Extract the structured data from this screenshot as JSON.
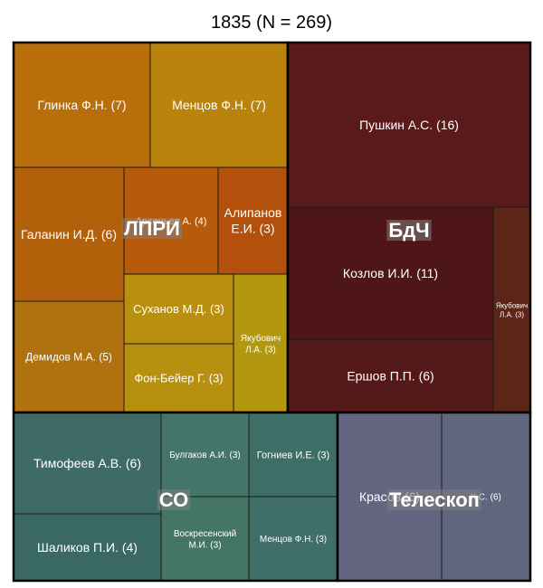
{
  "chart_data": {
    "type": "treemap",
    "title": "1835 (N = 269)",
    "groups": [
      {
        "name": "ЛПРИ",
        "colors": {
          "Глинка Ф.Н. (7)": "#b86e0b",
          "Менцов Ф.Н. (7)": "#ba830b",
          "Галанин И.Д. (6)": "#b3600b",
          "Арсеньев А. (4)": "#b85a0b",
          "Алипанов Е.И. (3)": "#b3500b",
          "Демидов М.А. (5)": "#b0710f",
          "Суханов М.Д. (3)": "#b88f0e",
          "Фон-Бейер Г. (3)": "#b8900f",
          "Якубович Л.А. (3)": "#b3980f"
        },
        "items": [
          {
            "label": "Глинка Ф.Н. (7)",
            "value": 7
          },
          {
            "label": "Менцов Ф.Н. (7)",
            "value": 7
          },
          {
            "label": "Галанин И.Д. (6)",
            "value": 6
          },
          {
            "label": "Арсеньев А. (4)",
            "value": 4
          },
          {
            "label": "Алипанов Е.И. (3)",
            "value": 3
          },
          {
            "label": "Демидов М.А. (5)",
            "value": 5
          },
          {
            "label": "Суханов М.Д. (3)",
            "value": 3
          },
          {
            "label": "Фон-Бейер Г. (3)",
            "value": 3
          },
          {
            "label": "Якубович Л.А. (3)",
            "value": 3
          }
        ]
      },
      {
        "name": "БдЧ",
        "colors": {
          "Пушкин А.С. (16)": "#5a1a1a",
          "Козлов И.И. (11)": "#4e1616",
          "Ершов П.П. (6)": "#551818",
          "Якубович Л.А. (3)": "#5c2518"
        },
        "items": [
          {
            "label": "Пушкин А.С. (16)",
            "value": 16
          },
          {
            "label": "Козлов И.И. (11)",
            "value": 11
          },
          {
            "label": "Ершов П.П. (6)",
            "value": 6
          },
          {
            "label": "Якубович Л.А. (3)",
            "value": 3
          }
        ]
      },
      {
        "name": "СО",
        "colors": {
          "Тимофеев А.В. (6)": "#3f6b66",
          "Булгаков А.И. (3)": "#447568",
          "Гогниев И.Е. (3)": "#3f6e66",
          "Шаликов П.И. (4)": "#3a6863",
          "Воскресенский М.И. (3)": "#457565",
          "Менцов Ф.Н. (3)": "#3f6f68"
        },
        "items": [
          {
            "label": "Тимофеев А.В. (6)",
            "value": 6
          },
          {
            "label": "Булгаков А.И. (3)",
            "value": 3
          },
          {
            "label": "Гогниев И.Е. (3)",
            "value": 3
          },
          {
            "label": "Шаликов П.И. (4)",
            "value": 4
          },
          {
            "label": "Воскресенский М.И. (3)",
            "value": 3
          },
          {
            "label": "Менцов Ф.Н. (3)",
            "value": 3
          }
        ]
      },
      {
        "name": "Телескоп",
        "colors": {
          "Красов (6)": "#646580",
          "К.С. (6)": "#5f677f"
        },
        "items": [
          {
            "label": "Красов (6)",
            "value": 6
          },
          {
            "label": "К.С. (6)",
            "value": 6
          }
        ]
      }
    ]
  }
}
